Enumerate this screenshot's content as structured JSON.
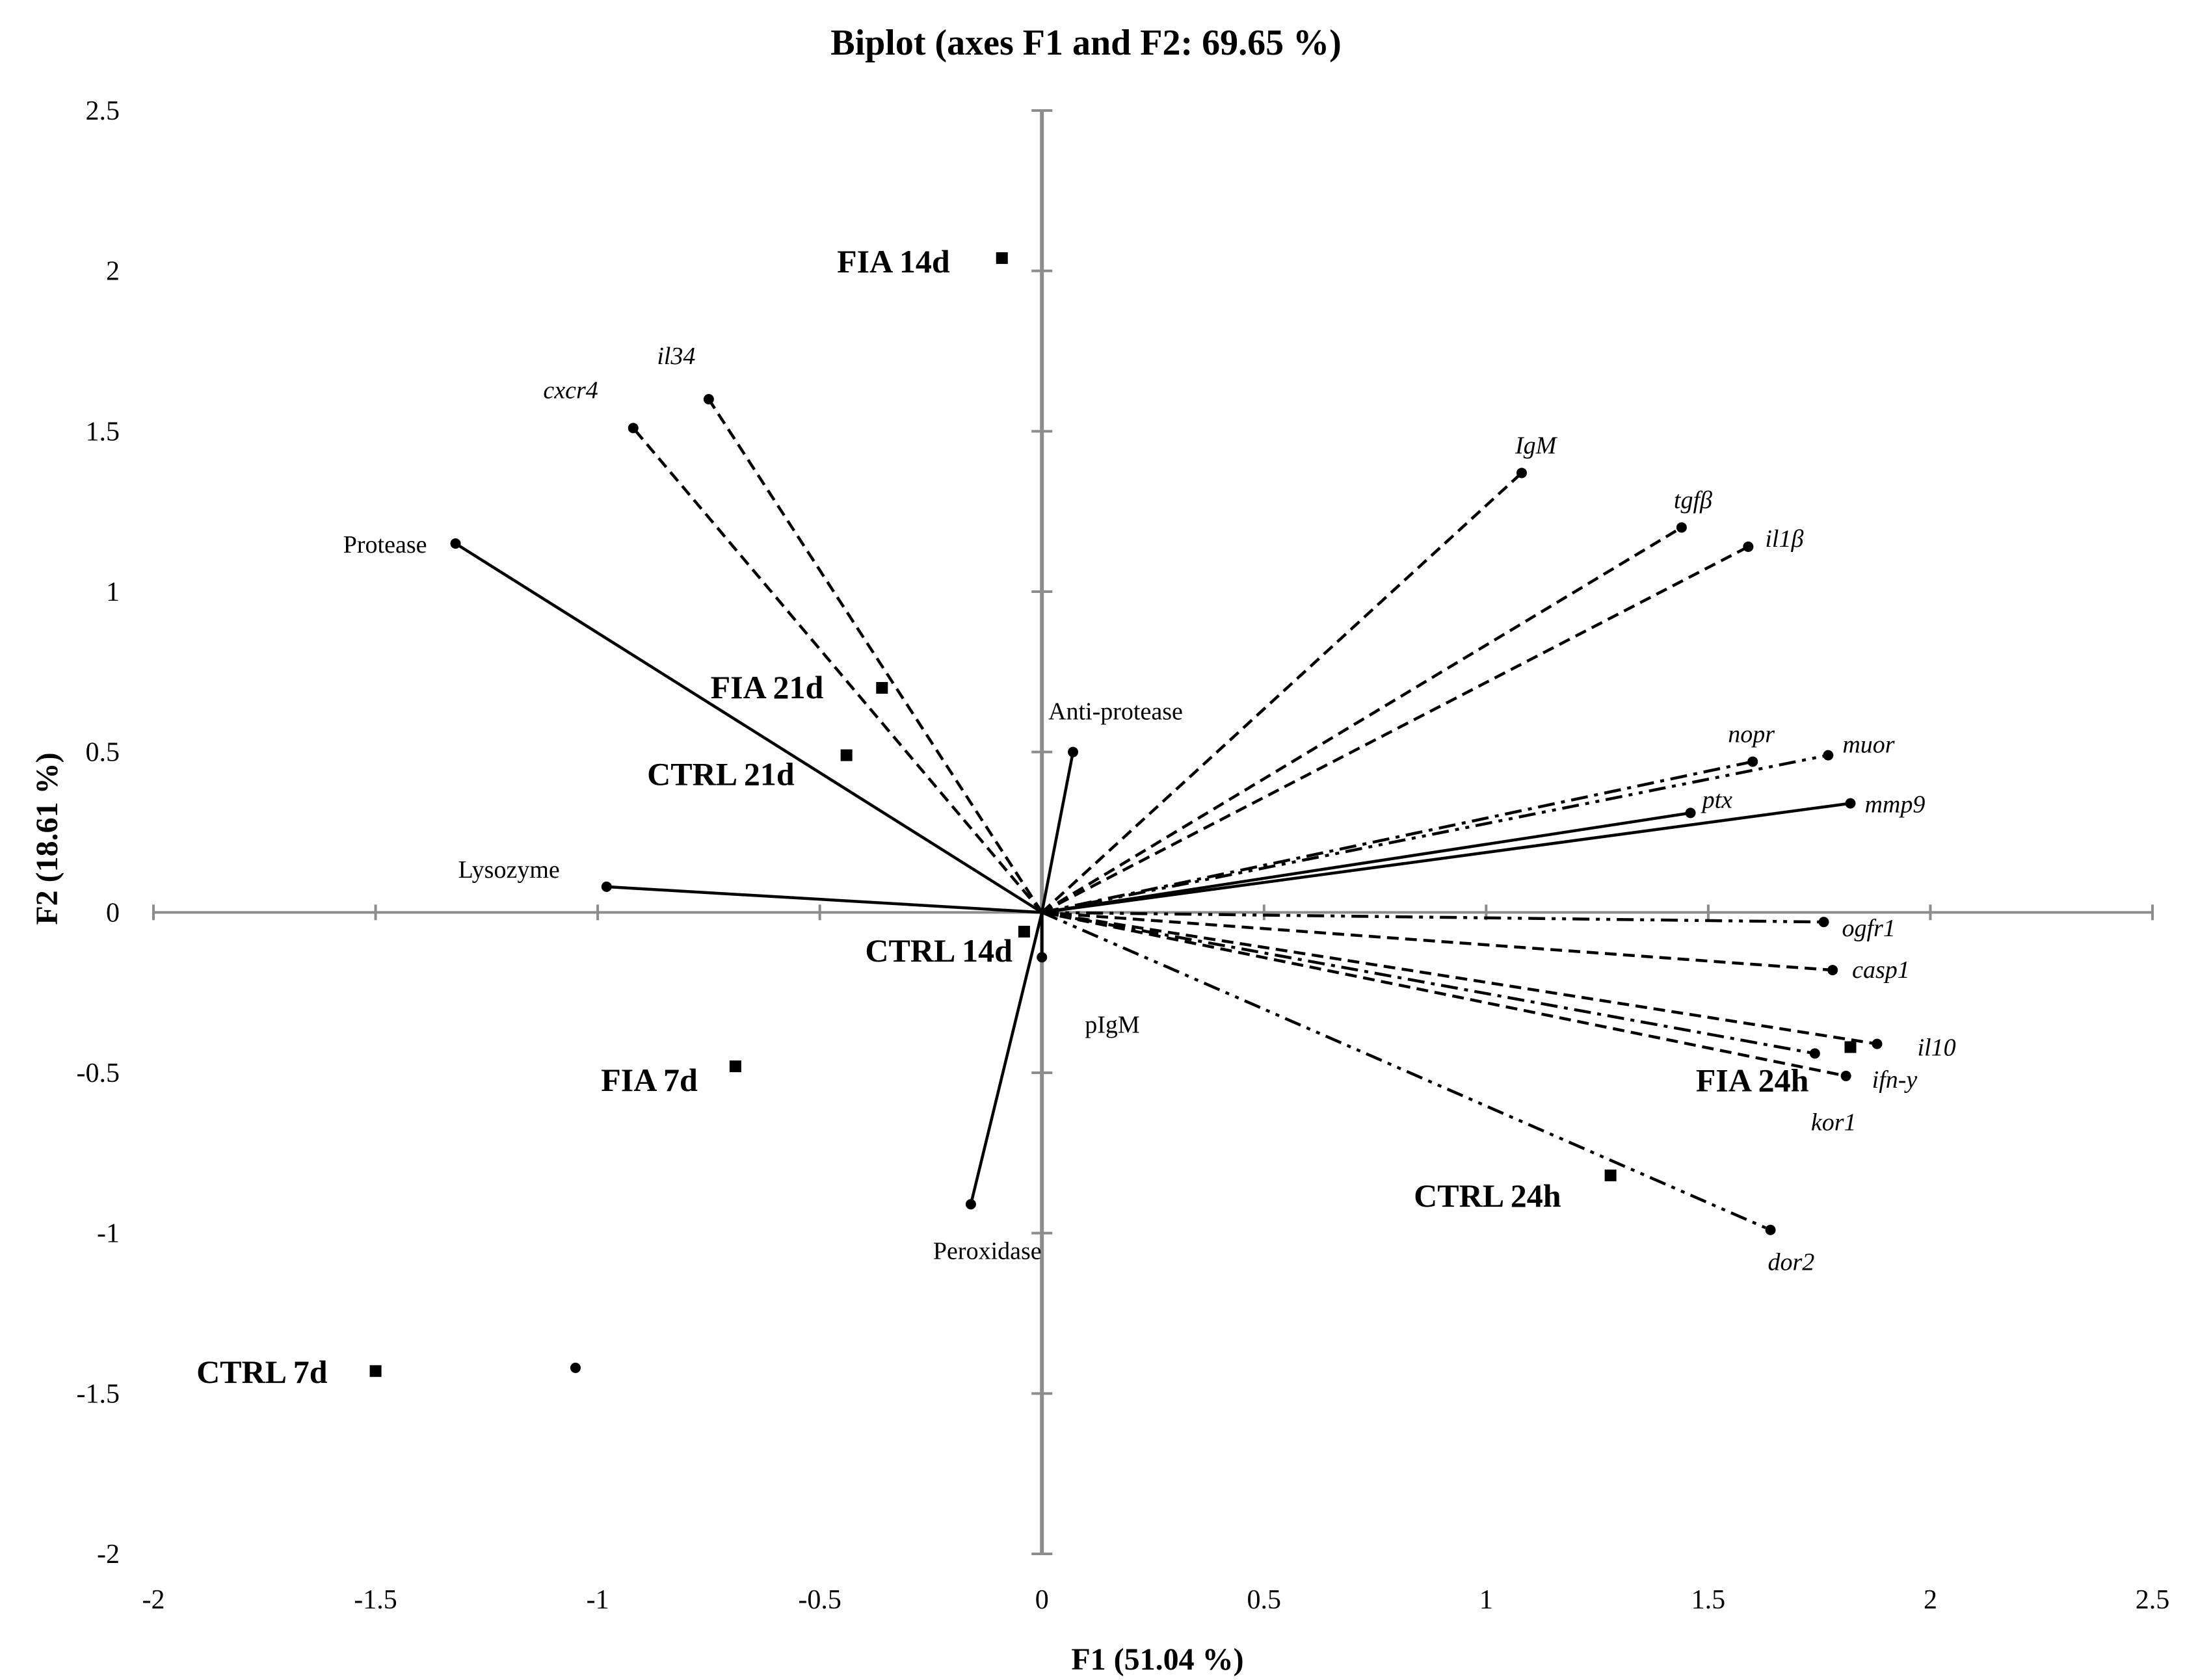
{
  "chart_data": {
    "type": "scatter",
    "title": "Biplot (axes F1 and F2: 69.65 %)",
    "xlabel": "F1 (51.04 %)",
    "ylabel": "F2 (18.61 %)",
    "xlim": [
      -2,
      2.5
    ],
    "ylim": [
      -2,
      2.5
    ],
    "x_ticks": [
      "-2",
      "-1.5",
      "-1",
      "-0.5",
      "0",
      "0.5",
      "1",
      "1.5",
      "2",
      "2.5"
    ],
    "y_ticks": [
      "2.5",
      "2",
      "1.5",
      "1",
      "0.5",
      "0",
      "-0.5",
      "-1",
      "-1.5",
      "-2"
    ],
    "x_tick_values": [
      -2,
      -1.5,
      -1,
      -0.5,
      0,
      0.5,
      1,
      1.5,
      2,
      2.5
    ],
    "y_tick_values": [
      2.5,
      2,
      1.5,
      1,
      0.5,
      0,
      -0.5,
      -1,
      -1.5,
      -2
    ],
    "grid": false,
    "legend": "none",
    "variables": [
      {
        "label": "il34",
        "x": -0.75,
        "y": 1.6,
        "line": "dashed",
        "italic": true
      },
      {
        "label": "cxcr4",
        "x": -0.92,
        "y": 1.51,
        "line": "dashed",
        "italic": true
      },
      {
        "label": "Protease",
        "x": -1.32,
        "y": 1.15,
        "line": "solid",
        "italic": false
      },
      {
        "label": "Lysozyme",
        "x": -0.98,
        "y": 0.08,
        "line": "solid",
        "italic": false
      },
      {
        "label": "Anti-protease",
        "x": 0.07,
        "y": 0.5,
        "line": "solid",
        "italic": false
      },
      {
        "label": "pIgM",
        "x": 0.0,
        "y": -0.14,
        "line": "solid",
        "italic": false
      },
      {
        "label": "Peroxidase",
        "x": -0.16,
        "y": -0.91,
        "line": "solid",
        "italic": false
      },
      {
        "label": "IgM",
        "x": 1.08,
        "y": 1.37,
        "line": "dashed",
        "italic": true
      },
      {
        "label": "tgfβ",
        "x": 1.44,
        "y": 1.2,
        "line": "dashed",
        "italic": true
      },
      {
        "label": "il1β",
        "x": 1.59,
        "y": 1.14,
        "line": "dashed",
        "italic": true
      },
      {
        "label": "nopr",
        "x": 1.6,
        "y": 0.47,
        "line": "dashdot",
        "italic": true
      },
      {
        "label": "muor",
        "x": 1.77,
        "y": 0.49,
        "line": "dashdotdot",
        "italic": true
      },
      {
        "label": "ptx",
        "x": 1.46,
        "y": 0.31,
        "line": "solid",
        "italic": true
      },
      {
        "label": "mmp9",
        "x": 1.82,
        "y": 0.34,
        "line": "solid",
        "italic": true
      },
      {
        "label": "ogfr1",
        "x": 1.76,
        "y": -0.03,
        "line": "dashdotdot",
        "italic": true
      },
      {
        "label": "casp1",
        "x": 1.78,
        "y": -0.18,
        "line": "dashed",
        "italic": true
      },
      {
        "label": "il10",
        "x": 1.88,
        "y": -0.41,
        "line": "dashed",
        "italic": true
      },
      {
        "label": "ifn-y",
        "x": 1.81,
        "y": -0.51,
        "line": "dashed",
        "italic": true
      },
      {
        "label": "kor1",
        "x": 1.74,
        "y": -0.44,
        "line": "dashdot",
        "italic": true
      },
      {
        "label": "dor2",
        "x": 1.64,
        "y": -0.99,
        "line": "dashdotdot",
        "italic": true
      }
    ],
    "extra_point": {
      "x": -1.05,
      "y": -1.42
    },
    "observations": [
      {
        "label": "FIA 14d",
        "x": -0.09,
        "y": 2.04
      },
      {
        "label": "FIA 21d",
        "x": -0.36,
        "y": 0.7
      },
      {
        "label": "CTRL 21d",
        "x": -0.44,
        "y": 0.49
      },
      {
        "label": "CTRL 14d",
        "x": -0.04,
        "y": -0.06
      },
      {
        "label": "FIA 7d",
        "x": -0.69,
        "y": -0.48
      },
      {
        "label": "CTRL 7d",
        "x": -1.5,
        "y": -1.43
      },
      {
        "label": "FIA 24h",
        "x": 1.82,
        "y": -0.42
      },
      {
        "label": "CTRL 24h",
        "x": 1.28,
        "y": -0.82
      }
    ]
  }
}
